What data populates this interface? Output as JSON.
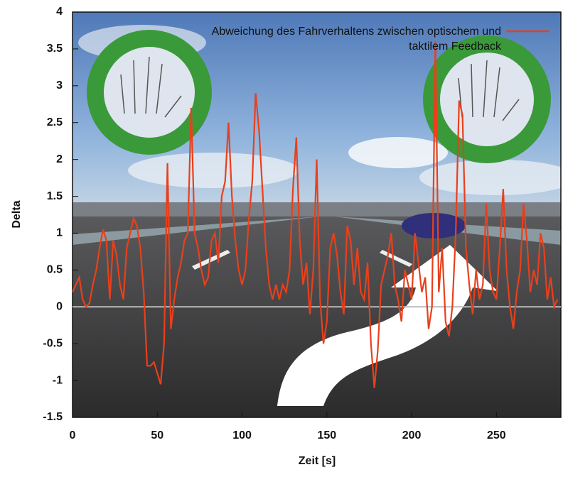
{
  "chart_data": {
    "type": "line",
    "x_label": "Zeit [s]",
    "y_label": "Delta",
    "xlim": [
      0,
      288
    ],
    "ylim": [
      -1.5,
      4
    ],
    "xticks": [
      0,
      50,
      100,
      150,
      200,
      250
    ],
    "yticks": [
      -1.5,
      -1,
      -0.5,
      0,
      0.5,
      1,
      1.5,
      2,
      2.5,
      3,
      3.5,
      4
    ],
    "legend": "top-right",
    "x": [
      0,
      2,
      4,
      6,
      8,
      10,
      12,
      14,
      16,
      18,
      20,
      22,
      24,
      26,
      28,
      30,
      32,
      34,
      36,
      38,
      40,
      42,
      44,
      46,
      48,
      50,
      52,
      54,
      56,
      58,
      60,
      62,
      64,
      66,
      68,
      70,
      72,
      74,
      76,
      78,
      80,
      82,
      84,
      86,
      88,
      90,
      92,
      94,
      96,
      98,
      100,
      102,
      104,
      106,
      108,
      110,
      112,
      114,
      116,
      118,
      120,
      122,
      124,
      126,
      128,
      130,
      132,
      134,
      136,
      138,
      140,
      142,
      144,
      146,
      148,
      150,
      152,
      154,
      156,
      158,
      160,
      162,
      164,
      166,
      168,
      170,
      172,
      174,
      176,
      178,
      180,
      182,
      184,
      186,
      188,
      190,
      192,
      194,
      196,
      198,
      200,
      202,
      204,
      206,
      208,
      210,
      212,
      214,
      216,
      218,
      220,
      222,
      224,
      226,
      228,
      230,
      232,
      234,
      236,
      238,
      240,
      242,
      244,
      246,
      248,
      250,
      252,
      254,
      256,
      258,
      260,
      262,
      264,
      266,
      268,
      270,
      272,
      274,
      276,
      278,
      280,
      282,
      284,
      286
    ],
    "series": [
      {
        "name": "Abweichung des Fahrverhaltens zwischen optischem und taktilem Feedback",
        "color": "#e8401c",
        "values": [
          0.2,
          0.3,
          0.4,
          0.1,
          0.0,
          0.05,
          0.3,
          0.5,
          0.8,
          1.05,
          0.9,
          0.1,
          0.9,
          0.7,
          0.3,
          0.1,
          0.8,
          1.0,
          1.2,
          1.1,
          0.8,
          0.2,
          -0.8,
          -0.8,
          -0.75,
          -0.9,
          -1.05,
          -0.5,
          1.95,
          -0.3,
          0.1,
          0.4,
          0.6,
          0.9,
          1.0,
          2.7,
          1.0,
          0.8,
          0.5,
          0.3,
          0.4,
          0.9,
          1.0,
          0.6,
          1.5,
          1.7,
          2.5,
          1.5,
          0.9,
          0.5,
          0.3,
          0.5,
          1.2,
          1.7,
          2.9,
          2.4,
          1.6,
          0.8,
          0.3,
          0.1,
          0.3,
          0.1,
          0.3,
          0.2,
          0.5,
          1.6,
          2.3,
          0.9,
          0.3,
          0.6,
          -0.1,
          0.5,
          2.0,
          0.1,
          -0.5,
          -0.2,
          0.8,
          1.0,
          0.7,
          0.2,
          -0.1,
          1.1,
          0.9,
          0.3,
          0.8,
          0.2,
          0.1,
          0.6,
          -0.5,
          -1.1,
          -0.6,
          0.3,
          0.5,
          0.7,
          1.0,
          0.3,
          0.1,
          -0.2,
          0.5,
          0.3,
          0.1,
          1.0,
          0.6,
          0.2,
          0.4,
          -0.3,
          0.0,
          3.6,
          0.2,
          0.8,
          -0.2,
          -0.4,
          0.0,
          1.0,
          2.8,
          2.6,
          0.8,
          0.3,
          -0.1,
          0.5,
          0.1,
          0.3,
          1.4,
          0.5,
          0.2,
          0.1,
          0.8,
          1.6,
          0.5,
          0.0,
          -0.3,
          0.2,
          0.5,
          1.4,
          0.9,
          0.2,
          0.5,
          0.3,
          1.0,
          0.8,
          0.1,
          0.4,
          0.0,
          0.1
        ]
      }
    ]
  }
}
